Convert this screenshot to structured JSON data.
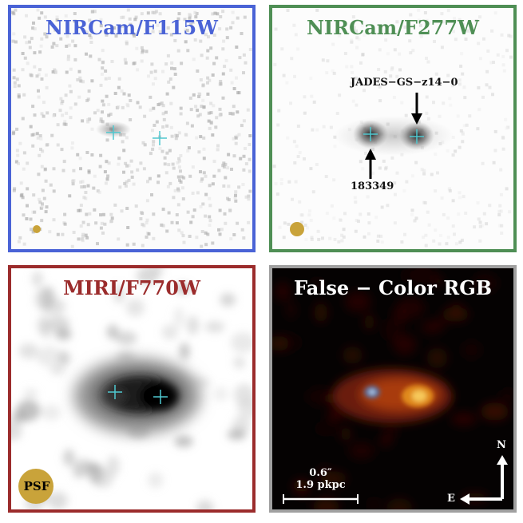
{
  "panels": {
    "f115w": {
      "title": "NIRCam/F115W",
      "border_color": "#4a63d6"
    },
    "f277w": {
      "title": "NIRCam/F277W",
      "border_color": "#4f8f55",
      "target_label": "JADES−GS−z14−0",
      "neighbor_label": "183349"
    },
    "f770w": {
      "title": "MIRI/F770W",
      "border_color": "#9b2c2c",
      "psf_label": "PSF"
    },
    "rgb": {
      "title": "False − Color RGB",
      "border_color": "#a0a0a0",
      "scale_arcsec": "0.6″",
      "scale_kpc": "1.9 pkpc",
      "compass_north": "N",
      "compass_east": "E"
    }
  },
  "colors": {
    "marker": "#4fc8d0",
    "psf": "#c9a33a"
  }
}
